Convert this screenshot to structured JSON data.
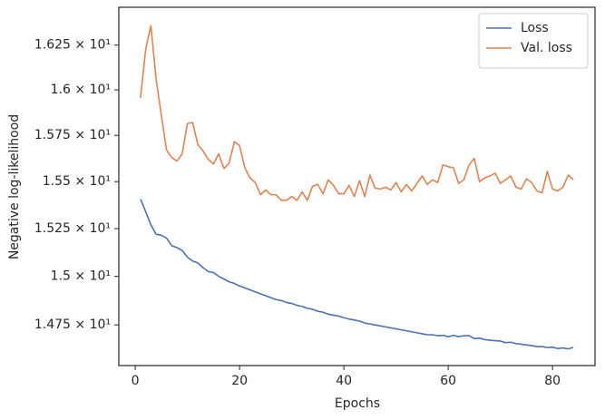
{
  "chart_data": {
    "type": "line",
    "xlabel": "Epochs",
    "ylabel": "Negative log-likelihood",
    "x": [
      1,
      2,
      3,
      4,
      5,
      6,
      7,
      8,
      9,
      10,
      11,
      12,
      13,
      14,
      15,
      16,
      17,
      18,
      19,
      20,
      21,
      22,
      23,
      24,
      25,
      26,
      27,
      28,
      29,
      30,
      31,
      32,
      33,
      34,
      35,
      36,
      37,
      38,
      39,
      40,
      41,
      42,
      43,
      44,
      45,
      46,
      47,
      48,
      49,
      50,
      51,
      52,
      53,
      54,
      55,
      56,
      57,
      58,
      59,
      60,
      61,
      62,
      63,
      64,
      65,
      66,
      67,
      68,
      69,
      70,
      71,
      72,
      73,
      74,
      75,
      76,
      77,
      78,
      79,
      80,
      81,
      82,
      83,
      84
    ],
    "series": [
      {
        "name": "Loss",
        "color": "#4c72b0",
        "values": [
          15.407,
          15.34,
          15.27,
          15.22,
          15.215,
          15.2,
          15.16,
          15.15,
          15.135,
          15.1,
          15.08,
          15.07,
          15.045,
          15.025,
          15.02,
          15.0,
          14.986,
          14.972,
          14.963,
          14.95,
          14.94,
          14.93,
          14.92,
          14.91,
          14.9,
          14.89,
          14.88,
          14.875,
          14.865,
          14.86,
          14.85,
          14.845,
          14.835,
          14.83,
          14.82,
          14.815,
          14.805,
          14.8,
          14.795,
          14.787,
          14.78,
          14.775,
          14.77,
          14.76,
          14.755,
          14.75,
          14.745,
          14.74,
          14.735,
          14.73,
          14.725,
          14.72,
          14.715,
          14.71,
          14.705,
          14.7,
          14.7,
          14.695,
          14.697,
          14.69,
          14.697,
          14.69,
          14.695,
          14.695,
          14.68,
          14.683,
          14.675,
          14.672,
          14.67,
          14.668,
          14.66,
          14.662,
          14.655,
          14.652,
          14.648,
          14.645,
          14.64,
          14.64,
          14.635,
          14.637,
          14.63,
          14.633,
          14.628,
          14.636
        ]
      },
      {
        "name": "Val. loss",
        "color": "#dd8452",
        "values": [
          15.955,
          16.225,
          16.36,
          16.06,
          15.86,
          15.67,
          15.63,
          15.61,
          15.65,
          15.815,
          15.82,
          15.7,
          15.665,
          15.62,
          15.595,
          15.65,
          15.57,
          15.6,
          15.715,
          15.695,
          15.575,
          15.52,
          15.495,
          15.43,
          15.455,
          15.43,
          15.43,
          15.4,
          15.4,
          15.42,
          15.4,
          15.445,
          15.4,
          15.475,
          15.485,
          15.435,
          15.51,
          15.48,
          15.435,
          15.435,
          15.48,
          15.42,
          15.505,
          15.42,
          15.535,
          15.465,
          15.46,
          15.47,
          15.455,
          15.495,
          15.445,
          15.485,
          15.45,
          15.49,
          15.53,
          15.485,
          15.51,
          15.495,
          15.59,
          15.58,
          15.575,
          15.49,
          15.51,
          15.59,
          15.625,
          15.5,
          15.52,
          15.53,
          15.545,
          15.49,
          15.51,
          15.53,
          15.47,
          15.46,
          15.515,
          15.495,
          15.45,
          15.44,
          15.555,
          15.46,
          15.45,
          15.47,
          15.535,
          15.51
        ]
      }
    ],
    "xlim": [
      -3.15,
      88.15
    ],
    "xticks": [
      0,
      20,
      40,
      60,
      80
    ],
    "ylim": [
      14.544,
      16.464
    ],
    "yscale": "log",
    "yticks": [
      {
        "value": 14.75,
        "label": "1.475 × 10¹"
      },
      {
        "value": 15,
        "label": "1.5 × 10¹"
      },
      {
        "value": 15.25,
        "label": "1.525 × 10¹"
      },
      {
        "value": 15.5,
        "label": "1.55 × 10¹"
      },
      {
        "value": 15.75,
        "label": "1.575 × 10¹"
      },
      {
        "value": 16,
        "label": "1.6 × 10¹"
      },
      {
        "value": 16.25,
        "label": "1.625 × 10¹"
      }
    ],
    "legend": "upper right",
    "grid": false
  }
}
